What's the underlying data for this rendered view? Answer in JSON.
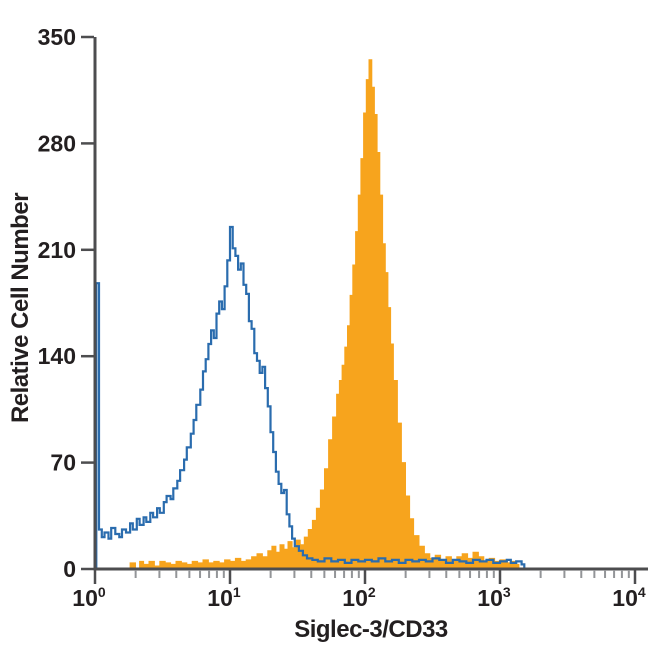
{
  "chart_data": {
    "type": "area",
    "subtype": "flow-cytometry-histogram-overlay",
    "title": "",
    "xlabel": "Siglec-3/CD33",
    "ylabel": "Relative Cell Number",
    "x_scale": "log10",
    "x_range_exponents": [
      0,
      4
    ],
    "x_tick_exponents": [
      0,
      1,
      2,
      3,
      4
    ],
    "x_tick_base": "10",
    "ylim": [
      0,
      350
    ],
    "y_ticks": [
      0,
      70,
      140,
      210,
      280,
      350
    ],
    "grid": false,
    "legend_position": "none",
    "colors": {
      "axis": "#4D4D4F",
      "minor_tick": "#939598",
      "text": "#231F20",
      "open_histogram_line": "#2A6CAE",
      "filled_histogram": "#F7A41D"
    },
    "series": [
      {
        "name": "filled-histogram",
        "style": "filled",
        "color": "#F7A41D",
        "peak": {
          "x_log10": 2.03,
          "count": 335
        },
        "points": [
          [
            0.26,
            4
          ],
          [
            0.3,
            0
          ],
          [
            0.33,
            5
          ],
          [
            0.36,
            3
          ],
          [
            0.4,
            5
          ],
          [
            0.44,
            2
          ],
          [
            0.48,
            5
          ],
          [
            0.52,
            4
          ],
          [
            0.56,
            3
          ],
          [
            0.6,
            5
          ],
          [
            0.64,
            4
          ],
          [
            0.68,
            3
          ],
          [
            0.72,
            5
          ],
          [
            0.76,
            4
          ],
          [
            0.8,
            6
          ],
          [
            0.84,
            4
          ],
          [
            0.88,
            5
          ],
          [
            0.92,
            4
          ],
          [
            0.96,
            6
          ],
          [
            1.0,
            5
          ],
          [
            1.04,
            7
          ],
          [
            1.08,
            5
          ],
          [
            1.12,
            6
          ],
          [
            1.16,
            8
          ],
          [
            1.2,
            10
          ],
          [
            1.24,
            8
          ],
          [
            1.28,
            12
          ],
          [
            1.31,
            15
          ],
          [
            1.34,
            11
          ],
          [
            1.37,
            16
          ],
          [
            1.4,
            13
          ],
          [
            1.43,
            18
          ],
          [
            1.46,
            14
          ],
          [
            1.49,
            19
          ],
          [
            1.52,
            16
          ],
          [
            1.55,
            21
          ],
          [
            1.58,
            26
          ],
          [
            1.61,
            32
          ],
          [
            1.64,
            40
          ],
          [
            1.67,
            52
          ],
          [
            1.7,
            66
          ],
          [
            1.73,
            85
          ],
          [
            1.76,
            100
          ],
          [
            1.79,
            115
          ],
          [
            1.81,
            124
          ],
          [
            1.83,
            134
          ],
          [
            1.85,
            146
          ],
          [
            1.87,
            160
          ],
          [
            1.89,
            180
          ],
          [
            1.91,
            200
          ],
          [
            1.93,
            222
          ],
          [
            1.95,
            246
          ],
          [
            1.97,
            270
          ],
          [
            1.99,
            300
          ],
          [
            2.01,
            322
          ],
          [
            2.03,
            335
          ],
          [
            2.05,
            317
          ],
          [
            2.07,
            299
          ],
          [
            2.09,
            274
          ],
          [
            2.11,
            246
          ],
          [
            2.13,
            214
          ],
          [
            2.15,
            195
          ],
          [
            2.17,
            172
          ],
          [
            2.19,
            148
          ],
          [
            2.21,
            124
          ],
          [
            2.24,
            96
          ],
          [
            2.27,
            70
          ],
          [
            2.3,
            48
          ],
          [
            2.33,
            33
          ],
          [
            2.36,
            22
          ],
          [
            2.4,
            15
          ],
          [
            2.44,
            10
          ],
          [
            2.48,
            7
          ],
          [
            2.52,
            9
          ],
          [
            2.56,
            6
          ],
          [
            2.6,
            8
          ],
          [
            2.64,
            5
          ],
          [
            2.68,
            8
          ],
          [
            2.72,
            10
          ],
          [
            2.76,
            7
          ],
          [
            2.8,
            11
          ],
          [
            2.84,
            8
          ],
          [
            2.88,
            5
          ],
          [
            2.92,
            7
          ],
          [
            2.96,
            5
          ],
          [
            3.0,
            6
          ],
          [
            3.04,
            4
          ],
          [
            3.08,
            5
          ],
          [
            3.12,
            3
          ],
          [
            3.14,
            0
          ]
        ]
      },
      {
        "name": "open-histogram",
        "style": "line",
        "color": "#2A6CAE",
        "peak": {
          "x_log10": 1.0,
          "count": 225
        },
        "edge_spike": {
          "x_log10": 0.01,
          "count": 188
        },
        "points": [
          [
            0.01,
            188
          ],
          [
            0.03,
            26
          ],
          [
            0.05,
            21
          ],
          [
            0.07,
            24
          ],
          [
            0.1,
            20
          ],
          [
            0.12,
            27
          ],
          [
            0.15,
            23
          ],
          [
            0.18,
            21
          ],
          [
            0.2,
            26
          ],
          [
            0.23,
            24
          ],
          [
            0.26,
            30
          ],
          [
            0.28,
            26
          ],
          [
            0.31,
            33
          ],
          [
            0.33,
            29
          ],
          [
            0.36,
            34
          ],
          [
            0.38,
            31
          ],
          [
            0.41,
            37
          ],
          [
            0.43,
            34
          ],
          [
            0.46,
            40
          ],
          [
            0.48,
            37
          ],
          [
            0.51,
            44
          ],
          [
            0.53,
            48
          ],
          [
            0.56,
            46
          ],
          [
            0.58,
            53
          ],
          [
            0.61,
            58
          ],
          [
            0.63,
            65
          ],
          [
            0.66,
            72
          ],
          [
            0.68,
            80
          ],
          [
            0.71,
            89
          ],
          [
            0.73,
            98
          ],
          [
            0.75,
            108
          ],
          [
            0.78,
            118
          ],
          [
            0.8,
            130
          ],
          [
            0.82,
            138
          ],
          [
            0.84,
            148
          ],
          [
            0.86,
            157
          ],
          [
            0.88,
            152
          ],
          [
            0.9,
            168
          ],
          [
            0.92,
            176
          ],
          [
            0.94,
            171
          ],
          [
            0.96,
            186
          ],
          [
            0.98,
            203
          ],
          [
            1.0,
            225
          ],
          [
            1.02,
            211
          ],
          [
            1.04,
            206
          ],
          [
            1.06,
            197
          ],
          [
            1.08,
            201
          ],
          [
            1.1,
            187
          ],
          [
            1.12,
            181
          ],
          [
            1.14,
            163
          ],
          [
            1.16,
            158
          ],
          [
            1.18,
            142
          ],
          [
            1.2,
            137
          ],
          [
            1.22,
            129
          ],
          [
            1.24,
            133
          ],
          [
            1.26,
            119
          ],
          [
            1.28,
            107
          ],
          [
            1.3,
            90
          ],
          [
            1.32,
            77
          ],
          [
            1.34,
            64
          ],
          [
            1.36,
            56
          ],
          [
            1.38,
            50
          ],
          [
            1.4,
            52
          ],
          [
            1.42,
            36
          ],
          [
            1.44,
            28
          ],
          [
            1.46,
            20
          ],
          [
            1.48,
            15
          ],
          [
            1.51,
            12
          ],
          [
            1.54,
            9
          ],
          [
            1.57,
            7
          ],
          [
            1.61,
            6
          ],
          [
            1.65,
            5
          ],
          [
            1.7,
            7
          ],
          [
            1.75,
            5
          ],
          [
            1.8,
            6
          ],
          [
            1.85,
            4
          ],
          [
            1.9,
            6
          ],
          [
            1.95,
            5
          ],
          [
            2.0,
            6
          ],
          [
            2.05,
            5
          ],
          [
            2.1,
            7
          ],
          [
            2.15,
            5
          ],
          [
            2.2,
            6
          ],
          [
            2.25,
            4
          ],
          [
            2.3,
            6
          ],
          [
            2.35,
            5
          ],
          [
            2.4,
            6
          ],
          [
            2.45,
            5
          ],
          [
            2.5,
            7
          ],
          [
            2.55,
            6
          ],
          [
            2.6,
            4
          ],
          [
            2.65,
            6
          ],
          [
            2.7,
            5
          ],
          [
            2.75,
            4
          ],
          [
            2.8,
            6
          ],
          [
            2.85,
            5
          ],
          [
            2.9,
            6
          ],
          [
            2.95,
            4
          ],
          [
            3.0,
            5
          ],
          [
            3.05,
            6
          ],
          [
            3.08,
            4
          ],
          [
            3.12,
            5
          ],
          [
            3.16,
            3
          ],
          [
            3.18,
            0
          ]
        ]
      }
    ]
  }
}
